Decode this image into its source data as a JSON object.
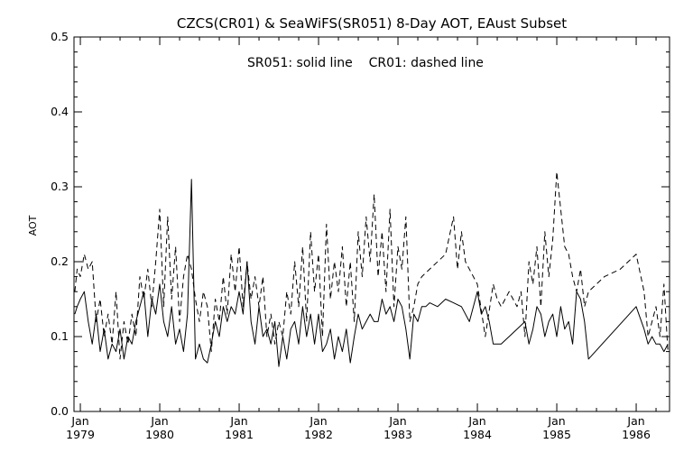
{
  "chart_data": {
    "type": "line",
    "title": "CZCS(CR01) & SeaWiFS(SR051) 8-Day AOT, EAust Subset",
    "annotation": "SR051: solid line    CR01: dashed line",
    "ylabel": "AOT",
    "xlabel": "",
    "xlim": [
      1978.92,
      1986.42
    ],
    "ylim": [
      0.0,
      0.5
    ],
    "yticks": [
      {
        "value": 0.0,
        "label": "0.0"
      },
      {
        "value": 0.1,
        "label": "0.1"
      },
      {
        "value": 0.2,
        "label": "0.2"
      },
      {
        "value": 0.3,
        "label": "0.3"
      },
      {
        "value": 0.4,
        "label": "0.4"
      },
      {
        "value": 0.5,
        "label": "0.5"
      }
    ],
    "xticks": [
      {
        "value": 1979.0,
        "month": "Jan",
        "year": "1979"
      },
      {
        "value": 1980.0,
        "month": "Jan",
        "year": "1980"
      },
      {
        "value": 1981.0,
        "month": "Jan",
        "year": "1981"
      },
      {
        "value": 1982.0,
        "month": "Jan",
        "year": "1982"
      },
      {
        "value": 1983.0,
        "month": "Jan",
        "year": "1983"
      },
      {
        "value": 1984.0,
        "month": "Jan",
        "year": "1984"
      },
      {
        "value": 1985.0,
        "month": "Jan",
        "year": "1985"
      },
      {
        "value": 1986.0,
        "month": "Jan",
        "year": "1986"
      }
    ],
    "grid": false,
    "series": [
      {
        "name": "SR051",
        "style": "solid",
        "color": "#000000",
        "x": [
          1978.93,
          1978.96,
          1979.0,
          1979.05,
          1979.1,
          1979.15,
          1979.2,
          1979.25,
          1979.3,
          1979.35,
          1979.4,
          1979.45,
          1979.5,
          1979.55,
          1979.6,
          1979.65,
          1979.7,
          1979.75,
          1979.8,
          1979.85,
          1979.9,
          1979.95,
          1980.0,
          1980.05,
          1980.1,
          1980.15,
          1980.2,
          1980.25,
          1980.3,
          1980.35,
          1980.4,
          1980.45,
          1980.5,
          1980.55,
          1980.6,
          1980.65,
          1980.7,
          1980.75,
          1980.8,
          1980.85,
          1980.9,
          1980.95,
          1981.0,
          1981.05,
          1981.1,
          1981.15,
          1981.2,
          1981.25,
          1981.3,
          1981.35,
          1981.4,
          1981.45,
          1981.5,
          1981.55,
          1981.6,
          1981.65,
          1981.7,
          1981.75,
          1981.8,
          1981.85,
          1981.9,
          1981.95,
          1982.0,
          1982.05,
          1982.1,
          1982.15,
          1982.2,
          1982.25,
          1982.3,
          1982.35,
          1982.4,
          1982.45,
          1982.5,
          1982.55,
          1982.6,
          1982.65,
          1982.7,
          1982.75,
          1982.8,
          1982.85,
          1982.9,
          1982.95,
          1983.0,
          1983.05,
          1983.1,
          1983.15,
          1983.2,
          1983.25,
          1983.3,
          1983.35,
          1983.4,
          1983.5,
          1983.6,
          1983.7,
          1983.8,
          1983.9,
          1984.0,
          1984.05,
          1984.1,
          1984.15,
          1984.2,
          1984.3,
          1984.4,
          1984.5,
          1984.6,
          1984.65,
          1984.7,
          1984.75,
          1984.8,
          1984.85,
          1984.9,
          1984.95,
          1985.0,
          1985.05,
          1985.1,
          1985.15,
          1985.2,
          1985.25,
          1985.3,
          1985.35,
          1985.4,
          1986.0,
          1986.1,
          1986.15,
          1986.2,
          1986.25,
          1986.3,
          1986.35,
          1986.4
        ],
        "y": [
          0.13,
          0.14,
          0.15,
          0.16,
          0.12,
          0.09,
          0.13,
          0.08,
          0.11,
          0.07,
          0.09,
          0.08,
          0.11,
          0.07,
          0.1,
          0.09,
          0.12,
          0.14,
          0.16,
          0.1,
          0.15,
          0.13,
          0.17,
          0.12,
          0.1,
          0.14,
          0.09,
          0.11,
          0.08,
          0.13,
          0.31,
          0.07,
          0.09,
          0.07,
          0.065,
          0.09,
          0.12,
          0.1,
          0.14,
          0.12,
          0.14,
          0.13,
          0.16,
          0.13,
          0.2,
          0.12,
          0.09,
          0.14,
          0.1,
          0.11,
          0.09,
          0.12,
          0.06,
          0.1,
          0.07,
          0.11,
          0.12,
          0.09,
          0.14,
          0.1,
          0.13,
          0.09,
          0.13,
          0.08,
          0.09,
          0.11,
          0.07,
          0.1,
          0.08,
          0.11,
          0.065,
          0.1,
          0.13,
          0.11,
          0.12,
          0.13,
          0.12,
          0.12,
          0.15,
          0.13,
          0.14,
          0.12,
          0.15,
          0.14,
          0.11,
          0.07,
          0.13,
          0.12,
          0.14,
          0.14,
          0.145,
          0.14,
          0.15,
          0.145,
          0.14,
          0.12,
          0.16,
          0.13,
          0.14,
          0.12,
          0.09,
          0.09,
          0.1,
          0.11,
          0.12,
          0.09,
          0.11,
          0.14,
          0.13,
          0.1,
          0.12,
          0.13,
          0.1,
          0.14,
          0.11,
          0.12,
          0.09,
          0.16,
          0.15,
          0.12,
          0.07,
          0.14,
          0.11,
          0.09,
          0.1,
          0.09,
          0.09,
          0.08,
          0.09
        ]
      },
      {
        "name": "CR01",
        "style": "dashed",
        "color": "#000000",
        "x": [
          1978.93,
          1978.96,
          1979.0,
          1979.05,
          1979.1,
          1979.15,
          1979.2,
          1979.25,
          1979.3,
          1979.35,
          1979.4,
          1979.45,
          1979.5,
          1979.55,
          1979.6,
          1979.65,
          1979.7,
          1979.75,
          1979.8,
          1979.85,
          1979.9,
          1979.95,
          1980.0,
          1980.05,
          1980.1,
          1980.15,
          1980.2,
          1980.25,
          1980.3,
          1980.35,
          1980.4,
          1980.45,
          1980.5,
          1980.55,
          1980.6,
          1980.65,
          1980.7,
          1980.75,
          1980.8,
          1980.85,
          1980.9,
          1980.95,
          1981.0,
          1981.05,
          1981.1,
          1981.15,
          1981.2,
          1981.25,
          1981.3,
          1981.35,
          1981.4,
          1981.45,
          1981.5,
          1981.55,
          1981.6,
          1981.65,
          1981.7,
          1981.75,
          1981.8,
          1981.85,
          1981.9,
          1981.95,
          1982.0,
          1982.05,
          1982.1,
          1982.15,
          1982.2,
          1982.25,
          1982.3,
          1982.35,
          1982.4,
          1982.45,
          1982.5,
          1982.55,
          1982.6,
          1982.65,
          1982.7,
          1982.75,
          1982.8,
          1982.85,
          1982.9,
          1982.95,
          1983.0,
          1983.05,
          1983.1,
          1983.15,
          1983.2,
          1983.25,
          1983.3,
          1983.4,
          1983.5,
          1983.6,
          1983.7,
          1983.75,
          1983.8,
          1983.85,
          1983.9,
          1984.0,
          1984.1,
          1984.2,
          1984.25,
          1984.3,
          1984.4,
          1984.5,
          1984.55,
          1984.6,
          1984.65,
          1984.7,
          1984.75,
          1984.8,
          1984.85,
          1984.9,
          1984.95,
          1985.0,
          1985.05,
          1985.1,
          1985.15,
          1985.2,
          1985.25,
          1985.3,
          1985.35,
          1985.4,
          1985.6,
          1985.8,
          1986.0,
          1986.1,
          1986.15,
          1986.2,
          1986.25,
          1986.3,
          1986.35,
          1986.4
        ],
        "y": [
          0.16,
          0.19,
          0.18,
          0.21,
          0.19,
          0.2,
          0.12,
          0.15,
          0.1,
          0.13,
          0.09,
          0.16,
          0.07,
          0.12,
          0.09,
          0.13,
          0.1,
          0.18,
          0.15,
          0.19,
          0.14,
          0.2,
          0.27,
          0.14,
          0.26,
          0.15,
          0.22,
          0.12,
          0.18,
          0.21,
          0.19,
          0.15,
          0.12,
          0.16,
          0.14,
          0.08,
          0.15,
          0.12,
          0.18,
          0.13,
          0.21,
          0.16,
          0.22,
          0.14,
          0.2,
          0.15,
          0.18,
          0.14,
          0.18,
          0.1,
          0.13,
          0.09,
          0.12,
          0.1,
          0.16,
          0.13,
          0.2,
          0.14,
          0.22,
          0.12,
          0.24,
          0.16,
          0.21,
          0.1,
          0.25,
          0.15,
          0.2,
          0.16,
          0.22,
          0.14,
          0.2,
          0.12,
          0.24,
          0.18,
          0.26,
          0.2,
          0.29,
          0.18,
          0.24,
          0.16,
          0.27,
          0.14,
          0.22,
          0.19,
          0.26,
          0.12,
          0.14,
          0.17,
          0.18,
          0.19,
          0.2,
          0.21,
          0.26,
          0.19,
          0.24,
          0.2,
          0.19,
          0.17,
          0.1,
          0.17,
          0.15,
          0.14,
          0.16,
          0.14,
          0.16,
          0.1,
          0.2,
          0.17,
          0.22,
          0.14,
          0.24,
          0.18,
          0.23,
          0.32,
          0.27,
          0.22,
          0.21,
          0.18,
          0.16,
          0.19,
          0.14,
          0.16,
          0.18,
          0.19,
          0.21,
          0.16,
          0.1,
          0.12,
          0.14,
          0.1,
          0.17,
          0.08
        ]
      }
    ]
  }
}
